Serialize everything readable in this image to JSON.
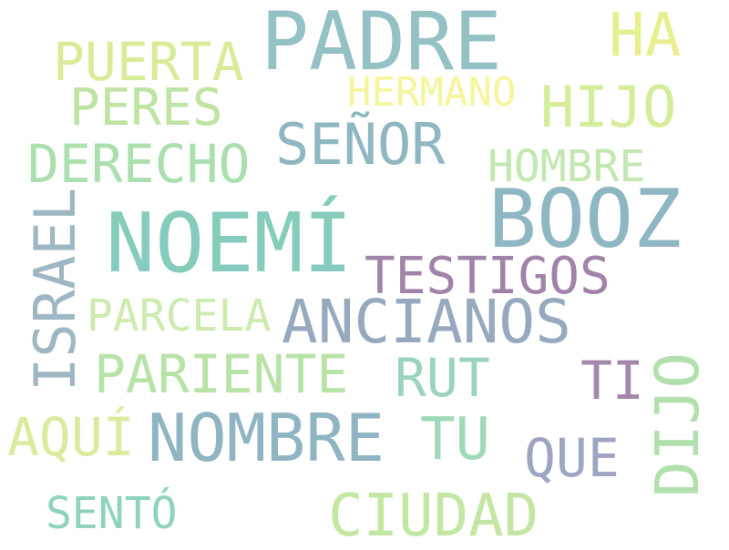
{
  "background": "#ffffff",
  "words": [
    {
      "id": "padre",
      "text": "PADRE",
      "color": "#93c1c4",
      "orientation": "horizontal"
    },
    {
      "id": "ha",
      "text": "HA",
      "color": "#e8ef8f",
      "orientation": "horizontal"
    },
    {
      "id": "puerta",
      "text": "PUERTA",
      "color": "#d8ec98",
      "orientation": "horizontal"
    },
    {
      "id": "peres",
      "text": "PERES",
      "color": "#bfe3a2",
      "orientation": "horizontal"
    },
    {
      "id": "hermano",
      "text": "HERMANO",
      "color": "#f6f59c",
      "orientation": "horizontal"
    },
    {
      "id": "hijo",
      "text": "HIJO",
      "color": "#d4ed9a",
      "orientation": "horizontal"
    },
    {
      "id": "senor",
      "text": "SEÑOR",
      "color": "#8fb7c1",
      "orientation": "horizontal"
    },
    {
      "id": "derecho",
      "text": "DERECHO",
      "color": "#abdfae",
      "orientation": "horizontal"
    },
    {
      "id": "hombre",
      "text": "HOMBRE",
      "color": "#c2e7b1",
      "orientation": "horizontal"
    },
    {
      "id": "booz",
      "text": "BOOZ",
      "color": "#8fb6c3",
      "orientation": "horizontal"
    },
    {
      "id": "israel",
      "text": "ISRAEL",
      "color": "#9fb7c3",
      "orientation": "vertical"
    },
    {
      "id": "noemi",
      "text": "NOEMÍ",
      "color": "#86ccbc",
      "orientation": "horizontal"
    },
    {
      "id": "testigos",
      "text": "TESTIGOS",
      "color": "#a084a8",
      "orientation": "horizontal"
    },
    {
      "id": "parcela",
      "text": "PARCELA",
      "color": "#cdebae",
      "orientation": "horizontal"
    },
    {
      "id": "ancianos",
      "text": "ANCIANOS",
      "color": "#97a9bf",
      "orientation": "horizontal"
    },
    {
      "id": "pariente",
      "text": "PARIENTE",
      "color": "#b8e3a7",
      "orientation": "horizontal"
    },
    {
      "id": "rut",
      "text": "RUT",
      "color": "#9bd3bb",
      "orientation": "horizontal"
    },
    {
      "id": "ti",
      "text": "TI",
      "color": "#a488ab",
      "orientation": "horizontal"
    },
    {
      "id": "dijo",
      "text": "DIJO",
      "color": "#b2e0ad",
      "orientation": "vertical"
    },
    {
      "id": "aqui",
      "text": "AQUÍ",
      "color": "#d7ec9d",
      "orientation": "horizontal"
    },
    {
      "id": "nombre",
      "text": "NOMBRE",
      "color": "#8fb4c2",
      "orientation": "horizontal"
    },
    {
      "id": "tu",
      "text": "TU",
      "color": "#a0d9b7",
      "orientation": "horizontal"
    },
    {
      "id": "que",
      "text": "QUE",
      "color": "#9ea4c2",
      "orientation": "horizontal"
    },
    {
      "id": "sento",
      "text": "SENTÓ",
      "color": "#8ed2bf",
      "orientation": "horizontal"
    },
    {
      "id": "ciudad",
      "text": "CIUDAD",
      "color": "#c3e7a2",
      "orientation": "horizontal"
    }
  ]
}
